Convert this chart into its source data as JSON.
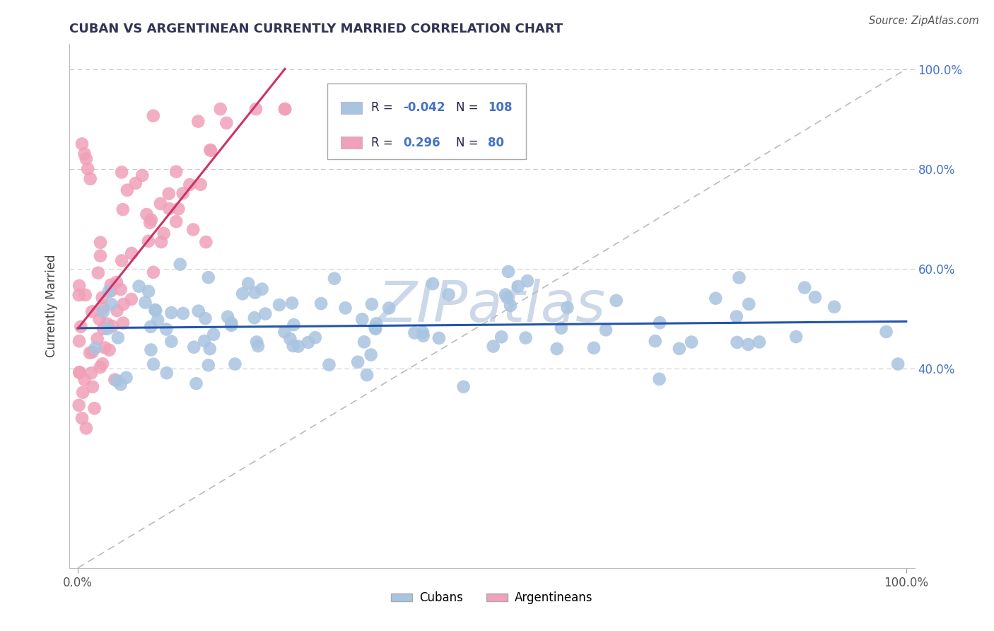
{
  "title": "CUBAN VS ARGENTINEAN CURRENTLY MARRIED CORRELATION CHART",
  "source": "Source: ZipAtlas.com",
  "ylabel": "Currently Married",
  "legend_cubans_R": "-0.042",
  "legend_cubans_N": "108",
  "legend_argentineans_R": "0.296",
  "legend_argentineans_N": "80",
  "cubans_color": "#a8c4e0",
  "argentineans_color": "#f0a0b8",
  "cubans_line_color": "#2255aa",
  "argentineans_line_color": "#cc3366",
  "watermark_color": "#ccd8e8",
  "grid_color": "#cccccc",
  "right_tick_color": "#4472c4",
  "title_color": "#333355",
  "source_color": "#555555"
}
